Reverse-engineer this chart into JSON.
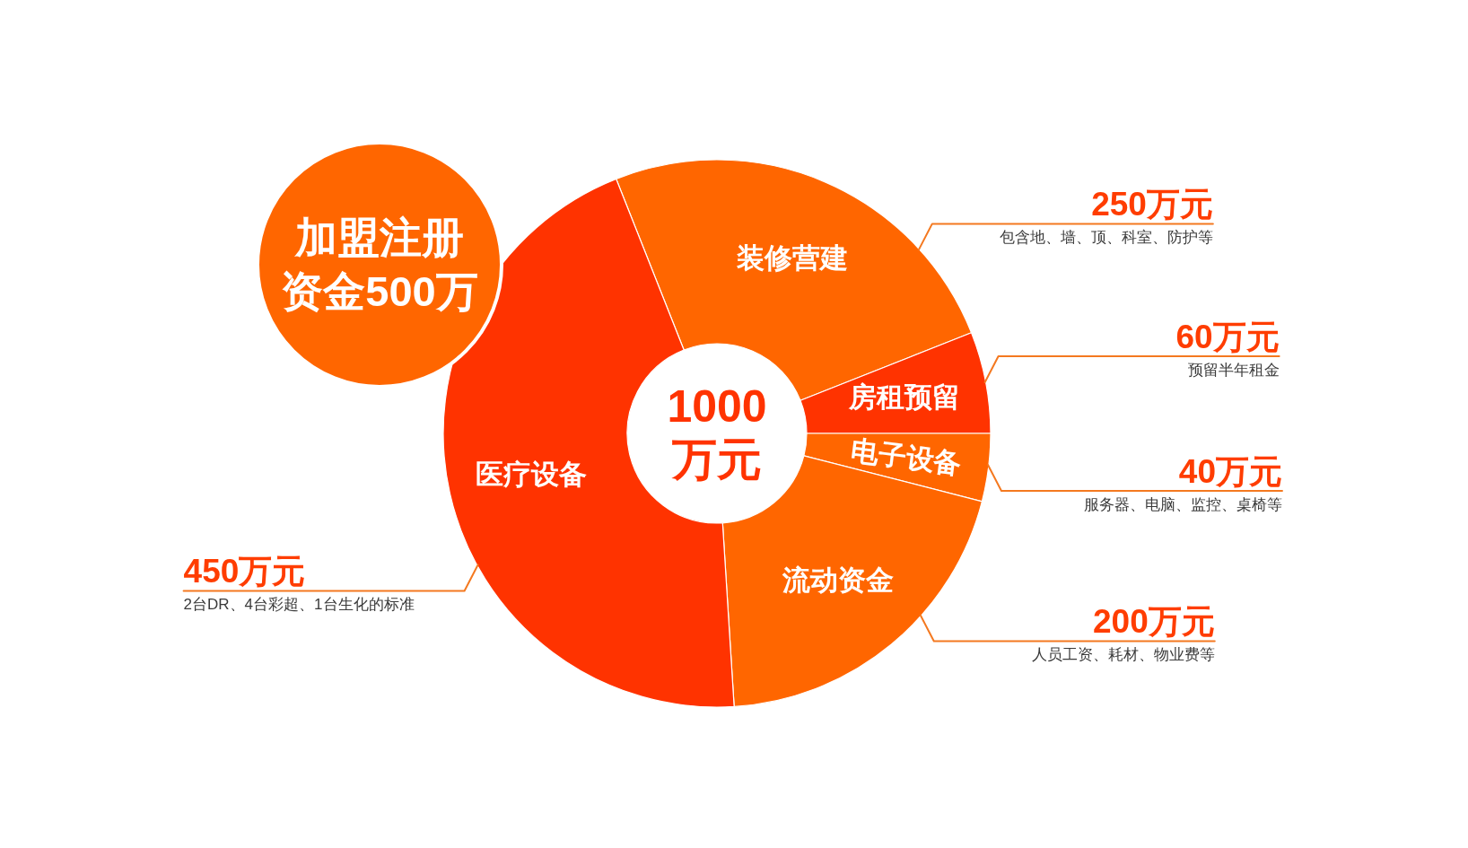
{
  "chart_data": {
    "type": "donut",
    "title": "1000万元",
    "categories": [
      "装修营建",
      "房租预留",
      "电子设备",
      "流动资金",
      "医疗设备"
    ],
    "values": [
      250,
      60,
      40,
      200,
      450
    ],
    "colors": [
      "#ff6600",
      "#ff3300",
      "#ff6600",
      "#ff6600",
      "#ff3300"
    ],
    "value_labels": [
      "250万元",
      "60万元",
      "40万元",
      "200万元",
      "450万元"
    ],
    "annotations": [
      "包含地、墙、顶、科室、防护等",
      "预留半年租金",
      "服务器、电脑、监控、桌椅等",
      "人员工资、耗材、物业费等",
      "2台DR、4台彩超、1台生化的标准",
      "加盟注册资金500万"
    ]
  }
}
